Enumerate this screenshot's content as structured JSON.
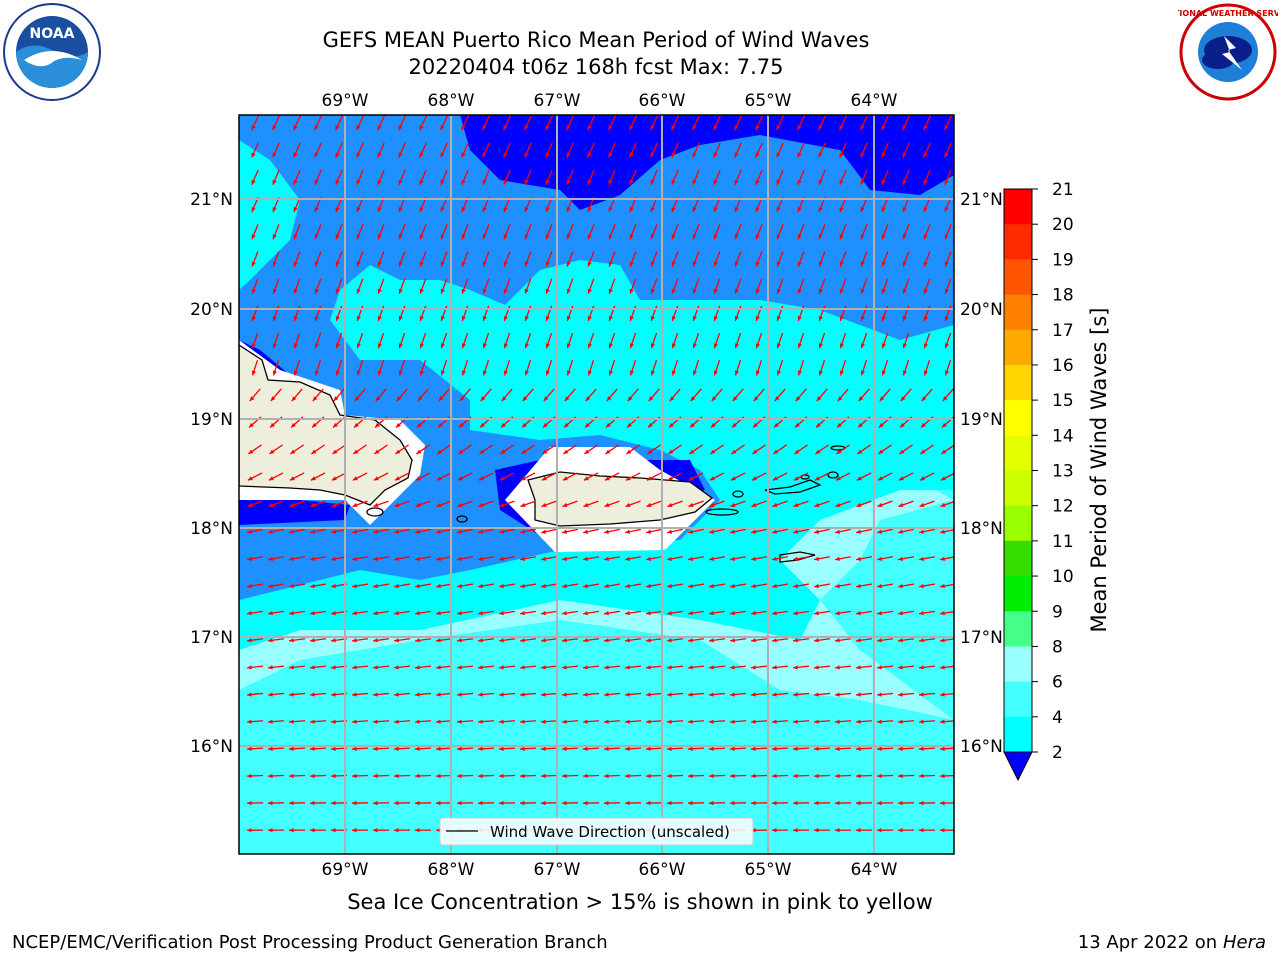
{
  "title": {
    "line1": "GEFS MEAN Puerto Rico Mean Period of Wind Waves",
    "line2": "20220404 t06z 168h fcst   Max: 7.75"
  },
  "logos": {
    "left": "noaa-logo",
    "left_text": "NOAA",
    "right": "nws-logo",
    "right_text": "NATIONAL WEATHER SERVICE"
  },
  "map": {
    "lon_labels": [
      "69°W",
      "68°W",
      "67°W",
      "66°W",
      "65°W",
      "64°W"
    ],
    "lat_labels": [
      "21°N",
      "20°N",
      "19°N",
      "18°N",
      "17°N",
      "16°N"
    ],
    "legend_label": "Wind Wave Direction (unscaled)",
    "arrow_color": "#ff0000",
    "land_color": "#eeeedd"
  },
  "colorbar": {
    "title": "Mean Period of Wind Waves [s]",
    "ticks": [
      "21",
      "20",
      "19",
      "18",
      "17",
      "16",
      "15",
      "14",
      "13",
      "12",
      "11",
      "10",
      "9",
      "8",
      "6",
      "4",
      "2"
    ],
    "colors": [
      "#ff0000",
      "#ff2a00",
      "#ff5500",
      "#ff8000",
      "#ffaa00",
      "#ffd400",
      "#ffff00",
      "#e6ff00",
      "#ccff00",
      "#99ff00",
      "#33dd00",
      "#00ee00",
      "#44ff88",
      "#99ffff",
      "#44ffff",
      "#00ffff",
      "#1e90ff"
    ],
    "extend_color": "#0000ff"
  },
  "subnote": "Sea Ice Concentration > 15% is shown in pink to yellow",
  "footer": {
    "left": "NCEP/EMC/Verification Post Processing Product Generation Branch",
    "right_date": "13 Apr 2022 on ",
    "right_host": "Hera"
  }
}
